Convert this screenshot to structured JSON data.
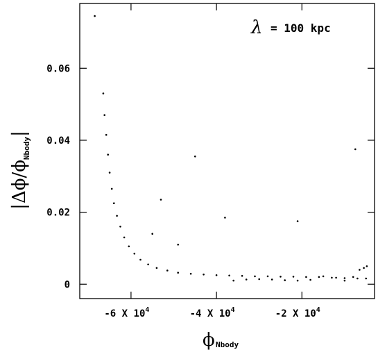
{
  "chart_data": {
    "type": "scatter",
    "title": "",
    "annotation": {
      "symbol": "λ",
      "text": "= 100 kpc"
    },
    "xlabel": {
      "main": "ϕ",
      "sub": "Nbody"
    },
    "ylabel": {
      "open": "|Δϕ/ϕ",
      "sub": "Nbody",
      "close": "|"
    },
    "xlim": [
      -72000,
      -3000
    ],
    "ylim": [
      -0.004,
      0.078
    ],
    "xticks": [
      {
        "value": -60000,
        "label": "-6 X 10",
        "exp": "4"
      },
      {
        "value": -40000,
        "label": "-4 X 10",
        "exp": "4"
      },
      {
        "value": -20000,
        "label": "-2 X 10",
        "exp": "4"
      }
    ],
    "yticks": [
      {
        "value": 0,
        "label": "0"
      },
      {
        "value": 0.02,
        "label": "0.02"
      },
      {
        "value": 0.04,
        "label": "0.04"
      },
      {
        "value": 0.06,
        "label": "0.06"
      }
    ],
    "grid": false,
    "legend": "none",
    "marker_color": "#000000",
    "series": [
      {
        "points": [
          [
            -68500,
            0.0745
          ],
          [
            -66500,
            0.053
          ],
          [
            -66200,
            0.047
          ],
          [
            -65800,
            0.0415
          ],
          [
            -65400,
            0.036
          ],
          [
            -65000,
            0.031
          ],
          [
            -64500,
            0.0265
          ],
          [
            -64000,
            0.0225
          ],
          [
            -63300,
            0.019
          ],
          [
            -62500,
            0.016
          ],
          [
            -61600,
            0.013
          ],
          [
            -60500,
            0.0105
          ],
          [
            -59200,
            0.0085
          ],
          [
            -57800,
            0.0068
          ],
          [
            -56000,
            0.0055
          ],
          [
            -54000,
            0.0045
          ],
          [
            -51500,
            0.0038
          ],
          [
            -49000,
            0.0032
          ],
          [
            -46000,
            0.0029
          ],
          [
            -43000,
            0.0027
          ],
          [
            -40000,
            0.0025
          ],
          [
            -37000,
            0.0024
          ],
          [
            -34000,
            0.0023
          ],
          [
            -31000,
            0.0022
          ],
          [
            -28000,
            0.0022
          ],
          [
            -25000,
            0.0021
          ],
          [
            -22000,
            0.0021
          ],
          [
            -19000,
            0.002
          ],
          [
            -16000,
            0.002
          ],
          [
            -13000,
            0.0018
          ],
          [
            -10000,
            0.0017
          ],
          [
            -7000,
            0.0016
          ],
          [
            -5000,
            0.0016
          ],
          [
            -36000,
            0.001
          ],
          [
            -33000,
            0.0013
          ],
          [
            -30000,
            0.0014
          ],
          [
            -27000,
            0.0013
          ],
          [
            -24000,
            0.0011
          ],
          [
            -21000,
            0.001
          ],
          [
            -18000,
            0.0012
          ],
          [
            -15000,
            0.0022
          ],
          [
            -12000,
            0.0018
          ],
          [
            -10000,
            0.001
          ],
          [
            -8000,
            0.002
          ],
          [
            -6500,
            0.004
          ],
          [
            -5500,
            0.0045
          ],
          [
            -4800,
            0.005
          ],
          [
            -45000,
            0.0355
          ],
          [
            -7500,
            0.0375
          ],
          [
            -53000,
            0.0235
          ],
          [
            -21000,
            0.0175
          ],
          [
            -38000,
            0.0185
          ],
          [
            -55000,
            0.014
          ],
          [
            -49000,
            0.011
          ]
        ]
      }
    ]
  }
}
